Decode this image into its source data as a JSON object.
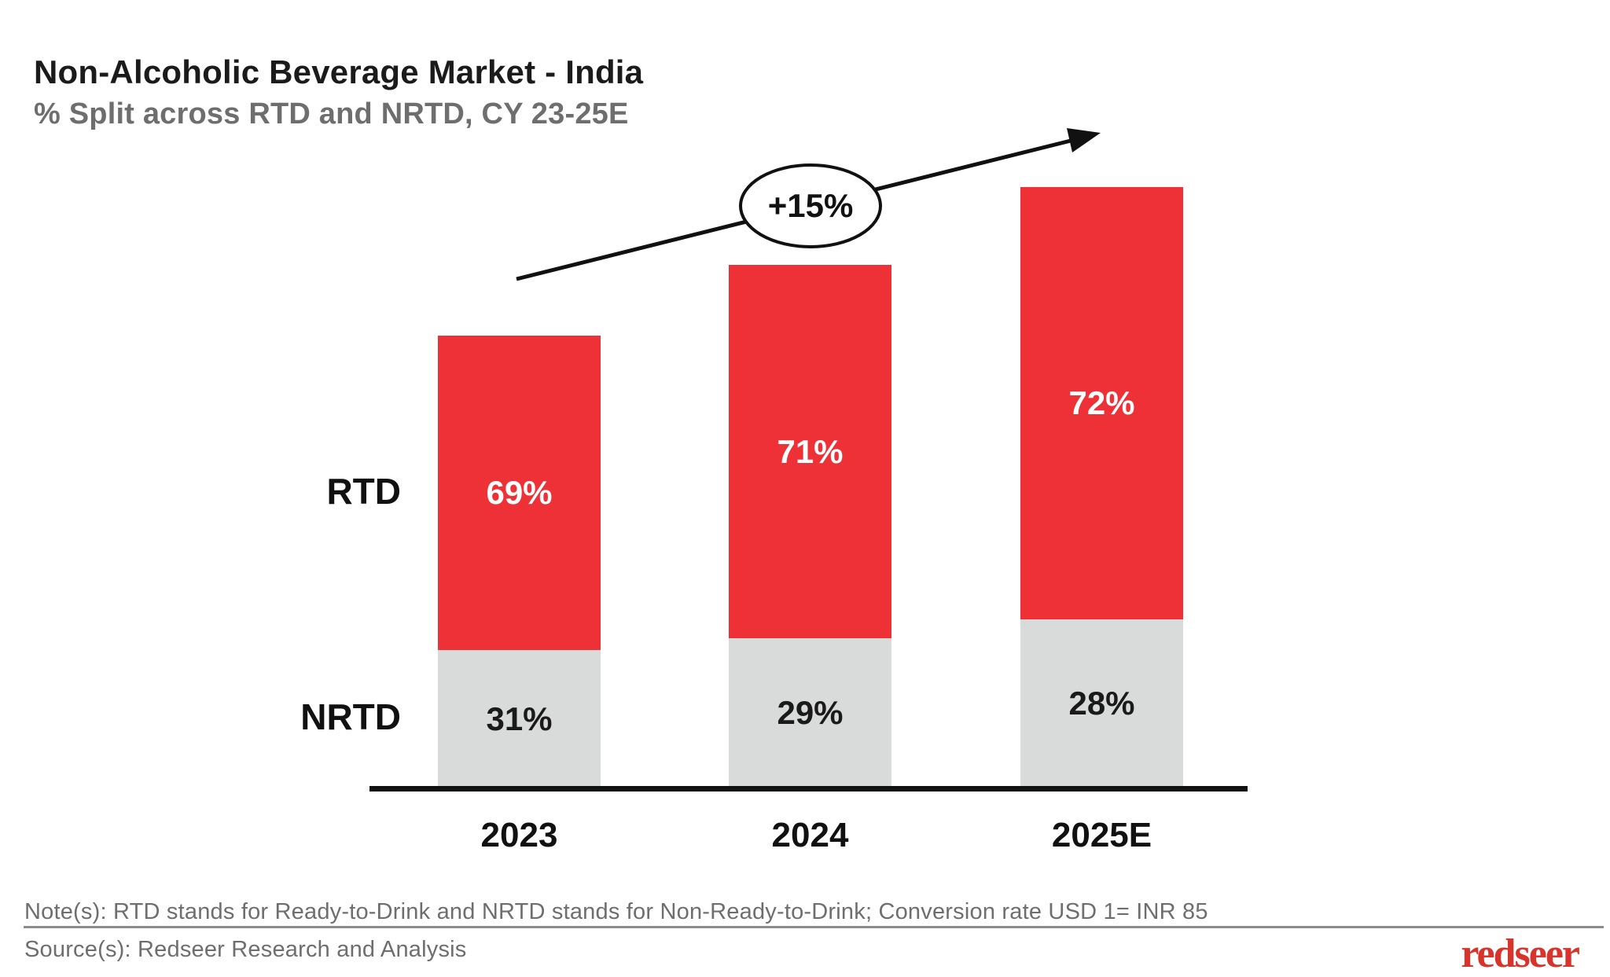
{
  "header": {
    "title": "Non-Alcoholic Beverage Market - India",
    "subtitle": "% Split across RTD and NRTD, CY 23-25E"
  },
  "chart_data": {
    "type": "bar",
    "stacked": true,
    "categories": [
      "2023",
      "2024",
      "2025E"
    ],
    "series": [
      {
        "name": "RTD",
        "values": [
          69,
          71,
          72
        ],
        "color": "#ed3136",
        "label_color": "#ffffff"
      },
      {
        "name": "NRTD",
        "values": [
          31,
          29,
          28
        ],
        "color": "#d9dada",
        "label_color": "#1a1a1a"
      }
    ],
    "unit": "%",
    "title": "Non-Alcoholic Beverage Market - India",
    "subtitle": "% Split across RTD and NRTD, CY 23-25E",
    "bar_total_relative_heights": [
      100,
      115.7,
      132.9
    ],
    "annotations": [
      {
        "type": "growth-arrow",
        "text": "+15%"
      }
    ],
    "gridlines": false,
    "y_axis": "hidden",
    "legend_position": "left-of-bars"
  },
  "annotation": {
    "growth_label": "+15%"
  },
  "footer": {
    "note": "Note(s): RTD stands for Ready-to-Drink and NRTD stands for Non-Ready-to-Drink; Conversion rate USD 1= INR 85",
    "source": "Source(s): Redseer Research and Analysis",
    "logo_text": "redseer"
  }
}
